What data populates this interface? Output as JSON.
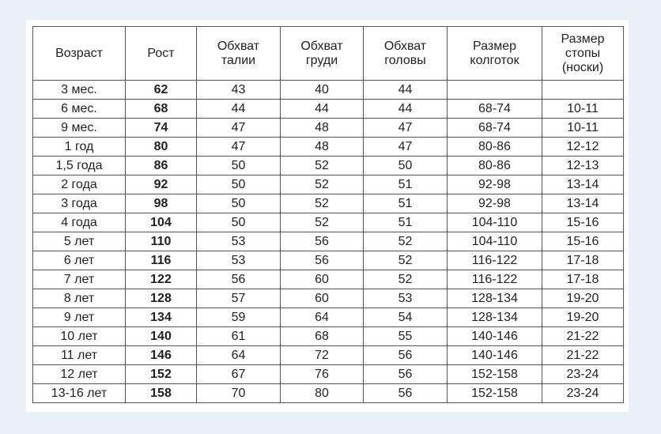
{
  "headers": [
    "Возраст",
    "Рост",
    "Обхват\nталии",
    "Обхват\nгруди",
    "Обхват\nголовы",
    "Размер\nколготок",
    "Размер\nстопы\n(носки)"
  ],
  "rows": [
    [
      "3 мес.",
      "62",
      "43",
      "40",
      "44",
      "",
      ""
    ],
    [
      "6 мес.",
      "68",
      "44",
      "44",
      "44",
      "68-74",
      "10-11"
    ],
    [
      "9 мес.",
      "74",
      "47",
      "48",
      "47",
      "68-74",
      "10-11"
    ],
    [
      "1 год",
      "80",
      "47",
      "48",
      "47",
      "80-86",
      "12-12"
    ],
    [
      "1,5 года",
      "86",
      "50",
      "52",
      "50",
      "80-86",
      "12-13"
    ],
    [
      "2 года",
      "92",
      "50",
      "52",
      "51",
      "92-98",
      "13-14"
    ],
    [
      "3 года",
      "98",
      "50",
      "52",
      "51",
      "92-98",
      "13-14"
    ],
    [
      "4 года",
      "104",
      "50",
      "52",
      "51",
      "104-110",
      "15-16"
    ],
    [
      "5 лет",
      "110",
      "53",
      "56",
      "52",
      "104-110",
      "15-16"
    ],
    [
      "6 лет",
      "116",
      "53",
      "56",
      "52",
      "116-122",
      "17-18"
    ],
    [
      "7 лет",
      "122",
      "56",
      "60",
      "52",
      "116-122",
      "17-18"
    ],
    [
      "8 лет",
      "128",
      "57",
      "60",
      "53",
      "128-134",
      "19-20"
    ],
    [
      "9 лет",
      "134",
      "59",
      "64",
      "54",
      "128-134",
      "19-20"
    ],
    [
      "10 лет",
      "140",
      "61",
      "68",
      "55",
      "140-146",
      "21-22"
    ],
    [
      "11 лет",
      "146",
      "64",
      "72",
      "56",
      "140-146",
      "21-22"
    ],
    [
      "12 лет",
      "152",
      "67",
      "76",
      "56",
      "152-158",
      "23-24"
    ],
    [
      "13-16 лет",
      "158",
      "70",
      "80",
      "56",
      "152-158",
      "23-24"
    ]
  ]
}
